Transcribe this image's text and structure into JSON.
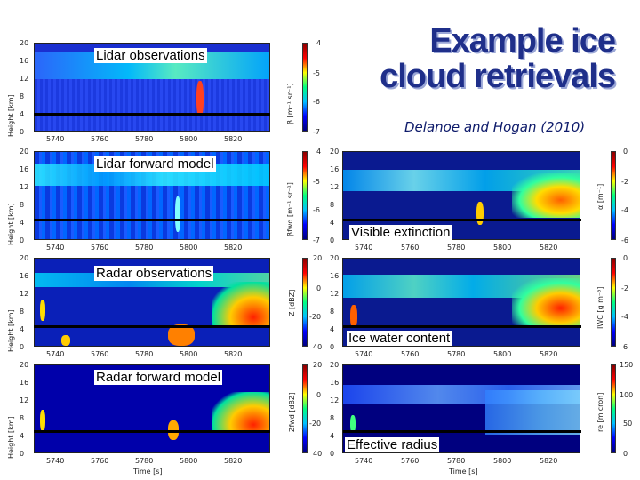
{
  "slide": {
    "title_line1": "Example ice",
    "title_line2": "cloud retrievals",
    "citation": "Delanoe and Hogan (2010)"
  },
  "left_panels": [
    {
      "label": "Lidar observations",
      "cbar_title": "β [m⁻¹ sr⁻¹]",
      "cbar_ticks": [
        "4",
        "-5",
        "-6",
        "-7"
      ]
    },
    {
      "label": "Lidar forward model",
      "cbar_title": "βfwd [m⁻¹ sr⁻¹]",
      "cbar_ticks": [
        "4",
        "-5",
        "-6",
        "-7"
      ]
    },
    {
      "label": "Radar observations",
      "cbar_title": "Z [dBZ]",
      "cbar_ticks": [
        "20",
        "0",
        "-20",
        "40"
      ]
    },
    {
      "label": "Radar forward model",
      "cbar_title": "Zfwd [dBZ]",
      "cbar_ticks": [
        "20",
        "0",
        "-20",
        "40"
      ]
    }
  ],
  "right_panels": [
    {
      "label": "Visible extinction",
      "cbar_title": "α [m⁻¹]",
      "cbar_ticks": [
        "0",
        "-2",
        "-4",
        "-6"
      ]
    },
    {
      "label": "Ice water content",
      "cbar_title": "IWC [g m⁻³]",
      "cbar_ticks": [
        "0",
        "-2",
        "-4",
        "6"
      ]
    },
    {
      "label": "Effective radius",
      "cbar_title": "re [micron]",
      "cbar_ticks": [
        "150",
        "100",
        "50",
        "0"
      ]
    }
  ],
  "axes": {
    "y_label": "Height [km]",
    "y_ticks": [
      "20",
      "16",
      "12",
      "8",
      "4",
      "0"
    ],
    "x_ticks": [
      "5740",
      "5760",
      "5780",
      "5800",
      "5820"
    ],
    "x_label": "Time [s]"
  }
}
